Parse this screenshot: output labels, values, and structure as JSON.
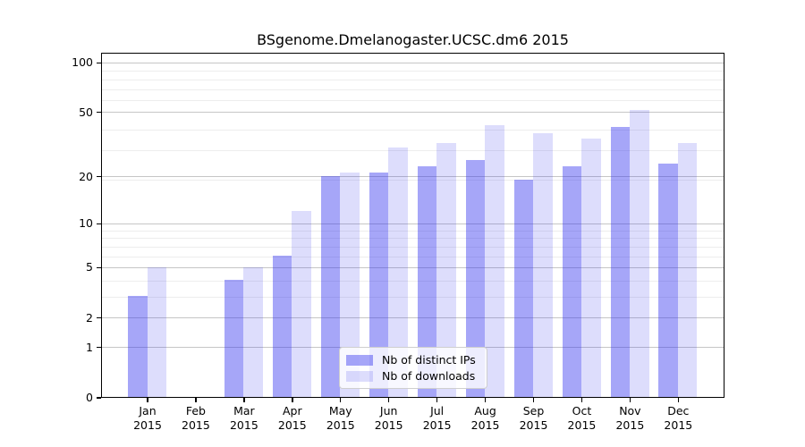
{
  "chart_data": {
    "type": "bar",
    "title": "BSgenome.Dmelanogaster.UCSC.dm6 2015",
    "categories": [
      "Jan",
      "Feb",
      "Mar",
      "Apr",
      "May",
      "Jun",
      "Jul",
      "Aug",
      "Sep",
      "Oct",
      "Nov",
      "Dec"
    ],
    "x_year": "2015",
    "series": [
      {
        "name": "Nb of distinct IPs",
        "color": "rgba(43,43,238,0.42)",
        "values": [
          3,
          0,
          4,
          6,
          20,
          21,
          23,
          25,
          19,
          23,
          40,
          24
        ]
      },
      {
        "name": "Nb of downloads",
        "color": "rgba(43,43,238,0.16)",
        "values": [
          5,
          0,
          5,
          12,
          21,
          30,
          32,
          41,
          37,
          34,
          51,
          32
        ]
      }
    ],
    "yscale": "log1p",
    "yticks": [
      0,
      1,
      2,
      5,
      10,
      20,
      50,
      100
    ],
    "ylim": [
      0,
      115
    ],
    "grid": {
      "minor_values": [
        3,
        4,
        6,
        7,
        8,
        9,
        19,
        29,
        39,
        59,
        69,
        79,
        89
      ],
      "major_color": "#c6c6c6",
      "minor_color": "#ededed",
      "grid_on": true
    },
    "legend_position": "lower-center"
  }
}
